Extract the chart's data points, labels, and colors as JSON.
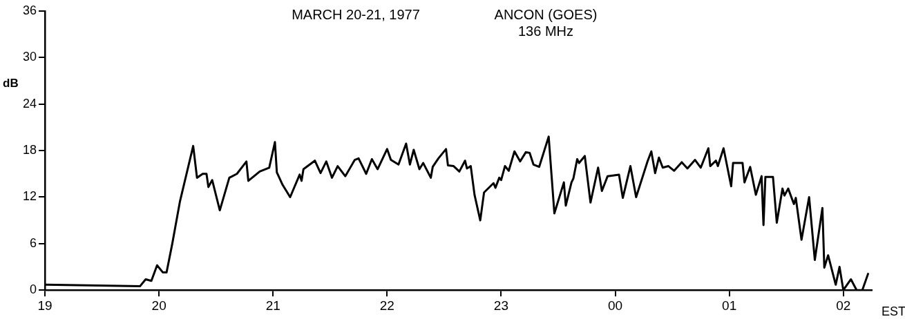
{
  "chart_data": {
    "type": "line",
    "title": "MARCH 20-21, 1977",
    "annotations": [
      "ANCON (GOES)",
      "136 MHz"
    ],
    "xlabel": "EST",
    "ylabel": "dB",
    "xlim": [
      "1977-03-20T19:00",
      "1977-03-21T02:15"
    ],
    "xticks": [
      {
        "value": "1977-03-20T19:00",
        "label": "19"
      },
      {
        "value": "1977-03-20T20:00",
        "label": "20"
      },
      {
        "value": "1977-03-20T21:00",
        "label": "21"
      },
      {
        "value": "1977-03-20T22:00",
        "label": "22"
      },
      {
        "value": "1977-03-20T23:00",
        "label": "23"
      },
      {
        "value": "1977-03-21T00:00",
        "label": "00"
      },
      {
        "value": "1977-03-21T01:00",
        "label": "01"
      },
      {
        "value": "1977-03-21T02:00",
        "label": "02"
      }
    ],
    "ylim": [
      0,
      36
    ],
    "yticks": [
      0,
      6,
      12,
      18,
      24,
      30,
      36
    ],
    "marker": "none",
    "line_style": "solid",
    "series": [
      {
        "color": "#000000",
        "x": [
          "1977-03-20T19:00",
          "1977-03-20T19:50",
          "1977-03-20T19:53",
          "1977-03-20T19:56",
          "1977-03-20T19:59",
          "1977-03-20T20:02",
          "1977-03-20T20:04",
          "1977-03-20T20:07",
          "1977-03-20T20:11",
          "1977-03-20T20:18",
          "1977-03-20T20:20",
          "1977-03-20T20:23",
          "1977-03-20T20:25",
          "1977-03-20T20:26",
          "1977-03-20T20:28",
          "1977-03-20T20:32",
          "1977-03-20T20:37",
          "1977-03-20T20:41",
          "1977-03-20T20:46",
          "1977-03-20T20:47",
          "1977-03-20T20:53",
          "1977-03-20T20:58",
          "1977-03-20T21:01",
          "1977-03-20T21:02",
          "1977-03-20T21:05",
          "1977-03-20T21:09",
          "1977-03-20T21:14",
          "1977-03-20T21:15",
          "1977-03-20T21:16",
          "1977-03-20T21:22",
          "1977-03-20T21:25",
          "1977-03-20T21:28",
          "1977-03-20T21:31",
          "1977-03-20T21:34",
          "1977-03-20T21:38",
          "1977-03-20T21:43",
          "1977-03-20T21:45",
          "1977-03-20T21:49",
          "1977-03-20T21:52",
          "1977-03-20T21:55",
          "1977-03-20T22:00",
          "1977-03-20T22:02",
          "1977-03-20T22:06",
          "1977-03-20T22:10",
          "1977-03-20T22:12",
          "1977-03-20T22:14",
          "1977-03-20T22:17",
          "1977-03-20T22:19",
          "1977-03-20T22:23",
          "1977-03-20T22:24",
          "1977-03-20T22:27",
          "1977-03-20T22:31",
          "1977-03-20T22:32",
          "1977-03-20T22:35",
          "1977-03-20T22:38",
          "1977-03-20T22:41",
          "1977-03-20T22:42",
          "1977-03-20T22:44",
          "1977-03-20T22:46",
          "1977-03-20T22:49",
          "1977-03-20T22:51",
          "1977-03-20T22:56",
          "1977-03-20T22:57",
          "1977-03-20T22:59",
          "1977-03-20T23:00",
          "1977-03-20T23:02",
          "1977-03-20T23:04",
          "1977-03-20T23:07",
          "1977-03-20T23:10",
          "1977-03-20T23:13",
          "1977-03-20T23:15",
          "1977-03-20T23:17",
          "1977-03-20T23:20",
          "1977-03-20T23:25",
          "1977-03-20T23:28",
          "1977-03-20T23:33",
          "1977-03-20T23:34",
          "1977-03-20T23:37",
          "1977-03-20T23:38",
          "1977-03-20T23:40",
          "1977-03-20T23:41",
          "1977-03-20T23:44",
          "1977-03-20T23:47",
          "1977-03-20T23:51",
          "1977-03-20T23:53",
          "1977-03-20T23:56",
          "1977-03-21T00:02",
          "1977-03-21T00:04",
          "1977-03-21T00:08",
          "1977-03-21T00:11",
          "1977-03-21T00:17",
          "1977-03-21T00:19",
          "1977-03-21T00:21",
          "1977-03-21T00:23",
          "1977-03-21T00:25",
          "1977-03-21T00:28",
          "1977-03-21T00:31",
          "1977-03-21T00:35",
          "1977-03-21T00:38",
          "1977-03-21T00:42",
          "1977-03-21T00:45",
          "1977-03-21T00:49",
          "1977-03-21T00:50",
          "1977-03-21T00:53",
          "1977-03-21T00:54",
          "1977-03-21T00:57",
          "1977-03-21T01:01",
          "1977-03-21T01:02",
          "1977-03-21T01:07",
          "1977-03-21T01:08",
          "1977-03-21T01:11",
          "1977-03-21T01:14",
          "1977-03-21T01:17",
          "1977-03-21T01:18",
          "1977-03-21T01:19",
          "1977-03-21T01:23",
          "1977-03-21T01:25",
          "1977-03-21T01:28",
          "1977-03-21T01:29",
          "1977-03-21T01:31",
          "1977-03-21T01:34",
          "1977-03-21T01:35",
          "1977-03-21T01:38",
          "1977-03-21T01:42",
          "1977-03-21T01:45",
          "1977-03-21T01:49",
          "1977-03-21T01:50",
          "1977-03-21T01:52",
          "1977-03-21T01:56",
          "1977-03-21T01:58",
          "1977-03-21T02:00",
          "1977-03-21T02:04",
          "1977-03-21T02:07",
          "1977-03-21T02:10",
          "1977-03-21T02:13"
        ],
        "values": [
          0.7,
          0.5,
          1.4,
          1.2,
          3.2,
          2.3,
          2.3,
          6,
          11.4,
          18.6,
          14.5,
          15,
          15,
          13.3,
          14.2,
          10.3,
          14.5,
          15,
          16.6,
          14.1,
          15.3,
          15.8,
          19.1,
          15.2,
          13.6,
          12,
          14.9,
          14.1,
          15.6,
          16.7,
          15.1,
          16.6,
          14.5,
          16,
          14.7,
          16.8,
          17,
          15,
          16.9,
          15.6,
          18.2,
          16.8,
          16.2,
          18.9,
          16.2,
          18.1,
          15.6,
          16.4,
          14.5,
          15.9,
          17,
          18.2,
          16.1,
          16,
          15.3,
          16.7,
          15.7,
          16,
          12.3,
          9,
          12.6,
          13.8,
          13.2,
          14.5,
          14.2,
          16,
          15.4,
          17.9,
          16.6,
          17.8,
          17.7,
          16.2,
          15.9,
          19.8,
          9.9,
          13.9,
          10.9,
          13.9,
          14.4,
          16.9,
          16.4,
          17.3,
          11.3,
          15.8,
          12.8,
          14.7,
          14.9,
          11.9,
          16,
          12,
          16.6,
          17.9,
          15.1,
          17.1,
          15.8,
          16,
          15.4,
          16.5,
          15.7,
          16.8,
          15.8,
          18.3,
          16,
          16.7,
          16,
          18.3,
          13.4,
          16.4,
          16.4,
          13.9,
          15.9,
          12.3,
          14.7,
          8.4,
          14.6,
          14.6,
          8.7,
          13.1,
          12.2,
          13.1,
          11.1,
          11.9,
          6.5,
          12,
          3.9,
          10.6,
          2.9,
          4.5,
          0.7,
          3,
          0,
          1.4,
          0,
          0,
          2.1
        ]
      }
    ]
  }
}
